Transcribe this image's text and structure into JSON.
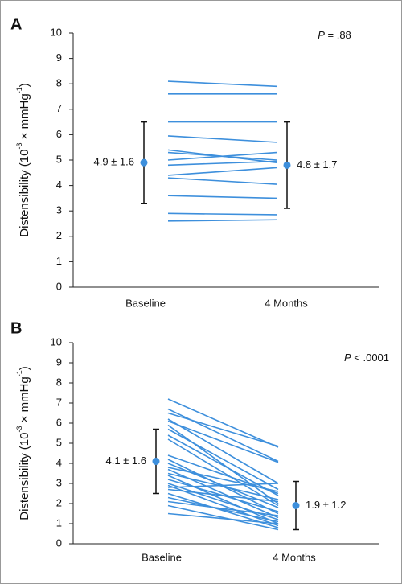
{
  "chart_data": [
    {
      "type": "slope",
      "panel": "A",
      "y_label": [
        "Distensibility (10",
        "-3",
        " × mmHg",
        "-1",
        ")"
      ],
      "p_value": {
        "symbol": "P",
        "text": " = .88"
      },
      "categories": [
        "Baseline",
        "4 Months"
      ],
      "ylim": [
        0,
        10
      ],
      "yticks": [
        0,
        1,
        2,
        3,
        4,
        5,
        6,
        7,
        8,
        9,
        10
      ],
      "color": "#3d8fdc",
      "series": [
        {
          "values": [
            8.1,
            7.9
          ]
        },
        {
          "values": [
            7.6,
            7.6
          ]
        },
        {
          "values": [
            6.5,
            6.5
          ]
        },
        {
          "values": [
            5.95,
            5.7
          ]
        },
        {
          "values": [
            5.4,
            4.9
          ]
        },
        {
          "values": [
            5.3,
            5.0
          ]
        },
        {
          "values": [
            5.0,
            5.3
          ]
        },
        {
          "values": [
            4.8,
            4.95
          ]
        },
        {
          "values": [
            4.4,
            4.7
          ]
        },
        {
          "values": [
            4.3,
            4.05
          ]
        },
        {
          "values": [
            3.6,
            3.5
          ]
        },
        {
          "values": [
            2.9,
            2.85
          ]
        },
        {
          "values": [
            2.6,
            2.65
          ]
        }
      ],
      "means": {
        "values": [
          4.9,
          4.8
        ],
        "errors": [
          1.6,
          1.7
        ],
        "value_labels": [
          "4.9 ± 1.6",
          "4.8 ± 1.7"
        ]
      }
    },
    {
      "type": "slope",
      "panel": "B",
      "y_label": [
        "Distensibility (10",
        "-3",
        " × mmHg",
        "-1",
        ")"
      ],
      "p_value": {
        "symbol": "P",
        "text": " < .0001"
      },
      "categories": [
        "Baseline",
        "4 Months"
      ],
      "ylim": [
        0,
        10
      ],
      "yticks": [
        0,
        1,
        2,
        3,
        4,
        5,
        6,
        7,
        8,
        9,
        10
      ],
      "color": "#3d8fdc",
      "series": [
        {
          "values": [
            7.2,
            4.8
          ]
        },
        {
          "values": [
            6.7,
            4.1
          ]
        },
        {
          "values": [
            6.5,
            4.85
          ]
        },
        {
          "values": [
            6.2,
            3.0
          ]
        },
        {
          "values": [
            6.1,
            4.05
          ]
        },
        {
          "values": [
            5.9,
            2.0
          ]
        },
        {
          "values": [
            5.7,
            2.7
          ]
        },
        {
          "values": [
            5.4,
            2.4
          ]
        },
        {
          "values": [
            5.2,
            1.9
          ]
        },
        {
          "values": [
            4.4,
            2.5
          ]
        },
        {
          "values": [
            4.2,
            1.5
          ]
        },
        {
          "values": [
            4.0,
            1.8
          ]
        },
        {
          "values": [
            3.8,
            2.6
          ]
        },
        {
          "values": [
            3.7,
            1.3
          ]
        },
        {
          "values": [
            3.5,
            2.2
          ]
        },
        {
          "values": [
            3.4,
            1.0
          ]
        },
        {
          "values": [
            3.2,
            1.6
          ]
        },
        {
          "values": [
            3.0,
            1.2
          ]
        },
        {
          "values": [
            2.9,
            0.9
          ]
        },
        {
          "values": [
            2.8,
            3.0
          ]
        },
        {
          "values": [
            2.7,
            2.1
          ]
        },
        {
          "values": [
            2.5,
            0.8
          ]
        },
        {
          "values": [
            2.3,
            1.1
          ]
        },
        {
          "values": [
            2.1,
            1.4
          ]
        },
        {
          "values": [
            1.9,
            0.7
          ]
        },
        {
          "values": [
            1.5,
            1.0
          ]
        }
      ],
      "means": {
        "values": [
          4.1,
          1.9
        ],
        "errors": [
          1.6,
          1.2
        ],
        "value_labels": [
          "4.1 ± 1.6",
          "1.9 ± 1.2"
        ]
      }
    }
  ]
}
